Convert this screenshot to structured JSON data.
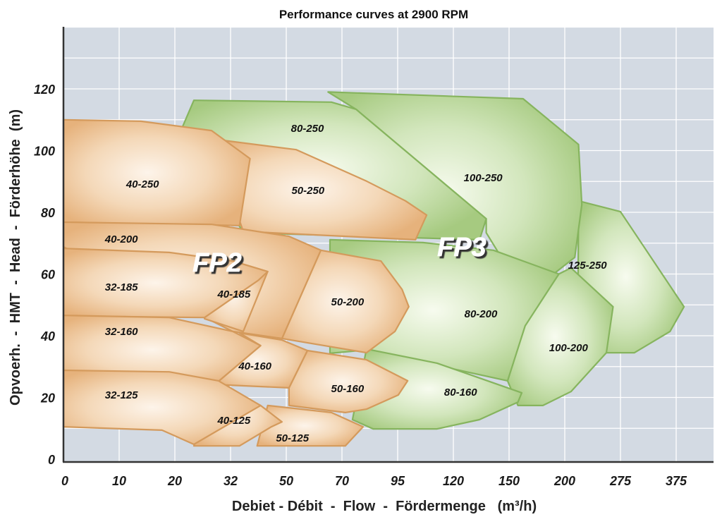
{
  "chart_data": {
    "type": "area",
    "title": "Performance curves at 2900 RPM",
    "xlabel": "Debiet - Débit  -  Flow  -  Fördermenge   (m³/h)",
    "ylabel": "Opvoerh.  -  HMT  -  Head  -  Förderhöhe  (m)",
    "x_scale": "non-linear (equally spaced ticks)",
    "x_ticks": [
      0,
      10,
      20,
      32,
      50,
      70,
      95,
      120,
      150,
      200,
      275,
      375
    ],
    "y_ticks": [
      0,
      20,
      40,
      60,
      80,
      100,
      120
    ],
    "ylim": [
      0,
      140
    ],
    "grid": true,
    "colors": {
      "FP2_fill": "#e9b986",
      "FP2_center": "#fdf4ea",
      "FP2_stroke": "#d49a5c",
      "FP3_fill": "#a8cc84",
      "FP3_center": "#f7fbef",
      "FP3_stroke": "#86b45e",
      "background": "#d3dae3",
      "grid": "#ffffff"
    },
    "groups": [
      {
        "name": "FP2",
        "label_at": [
          29.1,
          63.8
        ]
      },
      {
        "name": "FP3",
        "label_at": [
          124.5,
          68.8
        ]
      }
    ],
    "regions": [
      {
        "name": "125-250",
        "group": "FP3",
        "label_at": [
          230.5,
          62.9
        ],
        "points": [
          [
            218.5,
            83.7
          ],
          [
            275,
            80.2
          ],
          [
            389,
            49.4
          ],
          [
            364,
            41.4
          ],
          [
            300,
            34.5
          ],
          [
            237,
            34.5
          ],
          [
            218,
            59.8
          ]
        ]
      },
      {
        "name": "100-250",
        "group": "FP3",
        "label_at": [
          136,
          91.2
        ],
        "points": [
          [
            65,
            119
          ],
          [
            162.6,
            116.8
          ],
          [
            218.5,
            102
          ],
          [
            223,
            82.5
          ],
          [
            213.5,
            65.4
          ],
          [
            164.4,
            52.8
          ],
          [
            137.7,
            73.4
          ],
          [
            137.7,
            77.9
          ],
          [
            76.3,
            113.4
          ]
        ]
      },
      {
        "name": "80-250",
        "group": "FP3",
        "label_at": [
          57.6,
          107.2
        ],
        "points": [
          [
            21.5,
            107.2
          ],
          [
            24.1,
            116.3
          ],
          [
            66.2,
            115.7
          ],
          [
            76.3,
            113.4
          ],
          [
            137.7,
            77.9
          ],
          [
            134.1,
            71.1
          ],
          [
            36.1,
            73.4
          ]
        ]
      },
      {
        "name": "100-200",
        "group": "FP3",
        "label_at": [
          205,
          36.1
        ],
        "points": [
          [
            194.7,
            60
          ],
          [
            208.4,
            62
          ],
          [
            265,
            49.4
          ],
          [
            256,
            34.5
          ],
          [
            208.4,
            21.9
          ],
          [
            180.4,
            17.4
          ],
          [
            158,
            17.4
          ],
          [
            149.2,
            25.4
          ],
          [
            164.4,
            43.7
          ]
        ]
      },
      {
        "name": "80-200",
        "group": "FP3",
        "label_at": [
          134.8,
          47.1
        ],
        "points": [
          [
            65.7,
            71.1
          ],
          [
            106.4,
            70.2
          ],
          [
            141.6,
            67.7
          ],
          [
            194.7,
            60
          ],
          [
            164.4,
            43.2
          ],
          [
            149.2,
            25.4
          ],
          [
            81,
            35.4
          ],
          [
            65.7,
            34.3
          ]
        ]
      },
      {
        "name": "80-160",
        "group": "FP3",
        "label_at": [
          123.9,
          21.7
        ],
        "points": [
          [
            81,
            35.7
          ],
          [
            112.7,
            31.1
          ],
          [
            161.4,
            21.5
          ],
          [
            158,
            18.5
          ],
          [
            134,
            12.8
          ],
          [
            112.7,
            9.8
          ],
          [
            84,
            9.8
          ],
          [
            74.7,
            12.8
          ]
        ]
      },
      {
        "name": "50-250",
        "group": "FP2",
        "label_at": [
          57.8,
          87.1
        ],
        "points": [
          [
            27.9,
            103.8
          ],
          [
            53.6,
            100.3
          ],
          [
            81,
            90.1
          ],
          [
            98.5,
            83.7
          ],
          [
            108,
            79.1
          ],
          [
            103,
            71.1
          ],
          [
            36.1,
            73.8
          ]
        ]
      },
      {
        "name": "40-250",
        "group": "FP2",
        "label_at": [
          14.2,
          89.1
        ],
        "points": [
          [
            0,
            110
          ],
          [
            13.9,
            109.5
          ],
          [
            27.9,
            106.5
          ],
          [
            38.3,
            97.4
          ],
          [
            34.9,
            75.7
          ],
          [
            0,
            76.8
          ]
        ]
      },
      {
        "name": "50-200",
        "group": "FP2",
        "label_at": [
          72.5,
          51
        ],
        "points": [
          [
            62.4,
            67.7
          ],
          [
            87.5,
            64.2
          ],
          [
            97,
            55
          ],
          [
            100,
            49.4
          ],
          [
            93.8,
            41.4
          ],
          [
            81,
            34.5
          ],
          [
            48.6,
            39.1
          ]
        ]
      },
      {
        "name": "40-200",
        "group": "FP2",
        "label_at": [
          10.4,
          71.3
        ],
        "points": [
          [
            0,
            76.8
          ],
          [
            27.9,
            76.1
          ],
          [
            51,
            72.2
          ],
          [
            62.4,
            67.7
          ],
          [
            48.6,
            39.1
          ],
          [
            32.7,
            41.4
          ],
          [
            0,
            68.8
          ]
        ]
      },
      {
        "name": "40-185",
        "group": "FP2",
        "label_at": [
          33.1,
          53.5
        ],
        "points": [
          [
            27.9,
            64.2
          ],
          [
            32.7,
            64.2
          ],
          [
            44,
            60.8
          ],
          [
            36.1,
            41.4
          ],
          [
            26.4,
            45.5
          ]
        ]
      },
      {
        "name": "32-185",
        "group": "FP2",
        "label_at": [
          10.4,
          55.8
        ],
        "points": [
          [
            0,
            68.3
          ],
          [
            19,
            67
          ],
          [
            32.7,
            64.2
          ],
          [
            44,
            60.8
          ],
          [
            41,
            58
          ],
          [
            26.4,
            45.9
          ],
          [
            0,
            46.4
          ]
        ]
      },
      {
        "name": "50-160",
        "group": "FP2",
        "label_at": [
          72.5,
          22.9
        ],
        "points": [
          [
            57.6,
            35.2
          ],
          [
            81,
            32.2
          ],
          [
            99.5,
            25.4
          ],
          [
            95.3,
            20.8
          ],
          [
            81,
            16.2
          ],
          [
            71.5,
            15.1
          ],
          [
            51,
            17.4
          ],
          [
            51,
            23.1
          ]
        ]
      },
      {
        "name": "40-160",
        "group": "FP2",
        "label_at": [
          39.9,
          30.2
        ],
        "points": [
          [
            34.9,
            40.9
          ],
          [
            48.6,
            38.6
          ],
          [
            57.6,
            35.2
          ],
          [
            51,
            23.1
          ],
          [
            28.6,
            24.2
          ],
          [
            41.7,
            36.8
          ]
        ]
      },
      {
        "name": "32-160",
        "group": "FP2",
        "label_at": [
          10.4,
          41.4
        ],
        "points": [
          [
            0,
            46.6
          ],
          [
            19,
            45.9
          ],
          [
            32.7,
            41.4
          ],
          [
            41.7,
            36.8
          ],
          [
            28.6,
            24.2
          ],
          [
            0,
            28.8
          ]
        ]
      },
      {
        "name": "50-125",
        "group": "FP2",
        "label_at": [
          52.2,
          6.9
        ],
        "points": [
          [
            44,
            17.4
          ],
          [
            66.2,
            15.1
          ],
          [
            79.5,
            10.5
          ],
          [
            71.5,
            4.3
          ],
          [
            40.6,
            4.3
          ]
        ]
      },
      {
        "name": "40-125",
        "group": "FP2",
        "label_at": [
          33.1,
          12.6
        ],
        "points": [
          [
            28.6,
            24.2
          ],
          [
            41.7,
            17.4
          ],
          [
            48.6,
            12.1
          ],
          [
            45.2,
            10.5
          ],
          [
            34.9,
            4.3
          ],
          [
            24.1,
            4.3
          ]
        ]
      },
      {
        "name": "32-125",
        "group": "FP2",
        "label_at": [
          10.4,
          20.8
        ],
        "points": [
          [
            0,
            28.8
          ],
          [
            19,
            28.3
          ],
          [
            29.4,
            25.4
          ],
          [
            41.7,
            17.4
          ],
          [
            24.1,
            4.8
          ],
          [
            17.7,
            9.4
          ],
          [
            0,
            10.5
          ]
        ]
      }
    ]
  }
}
